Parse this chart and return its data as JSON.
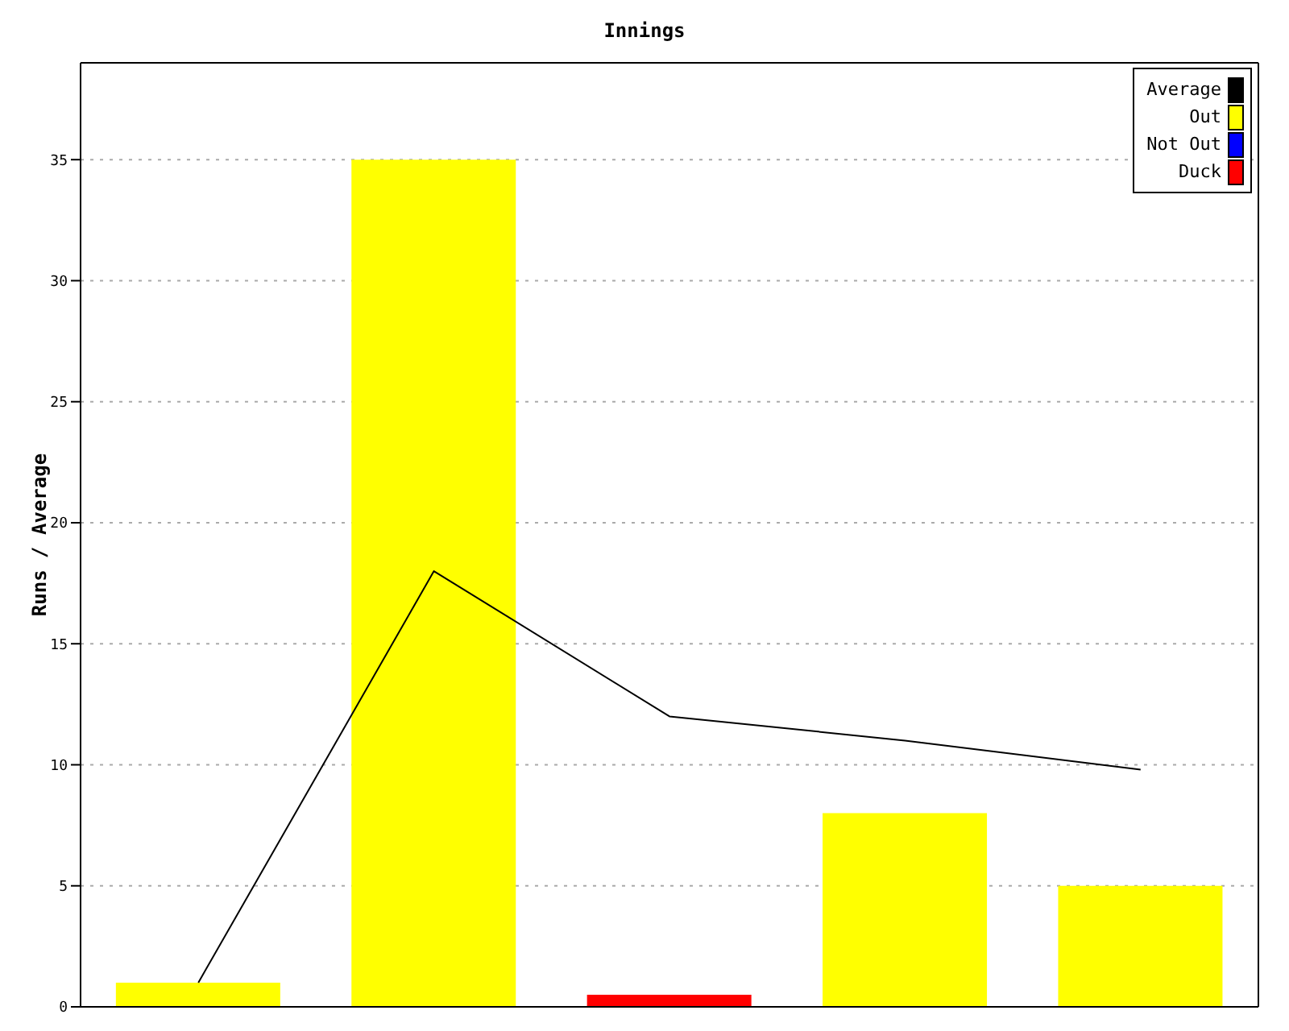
{
  "chart_data": {
    "type": "bar",
    "title": "Innings",
    "ylabel": "Runs / Average",
    "categories": [
      null,
      null,
      null,
      null,
      null
    ],
    "stacked": true,
    "series": [
      {
        "name": "Average",
        "type": "line",
        "color": "#000000",
        "values": [
          1,
          18,
          12,
          11,
          9.8
        ]
      },
      {
        "name": "Out",
        "color": "#ffff00",
        "values": [
          1,
          35,
          null,
          8,
          5
        ]
      },
      {
        "name": "Not Out",
        "color": "#0000ff",
        "values": [
          null,
          null,
          null,
          null,
          null
        ]
      },
      {
        "name": "Duck",
        "color": "#ff0000",
        "values": [
          null,
          null,
          0.5,
          null,
          null
        ]
      }
    ],
    "ylim": [
      0,
      39
    ],
    "yticks": [
      0,
      5,
      10,
      15,
      20,
      25,
      30,
      35
    ],
    "grid": "y",
    "legend": "top right",
    "marker": "none"
  }
}
